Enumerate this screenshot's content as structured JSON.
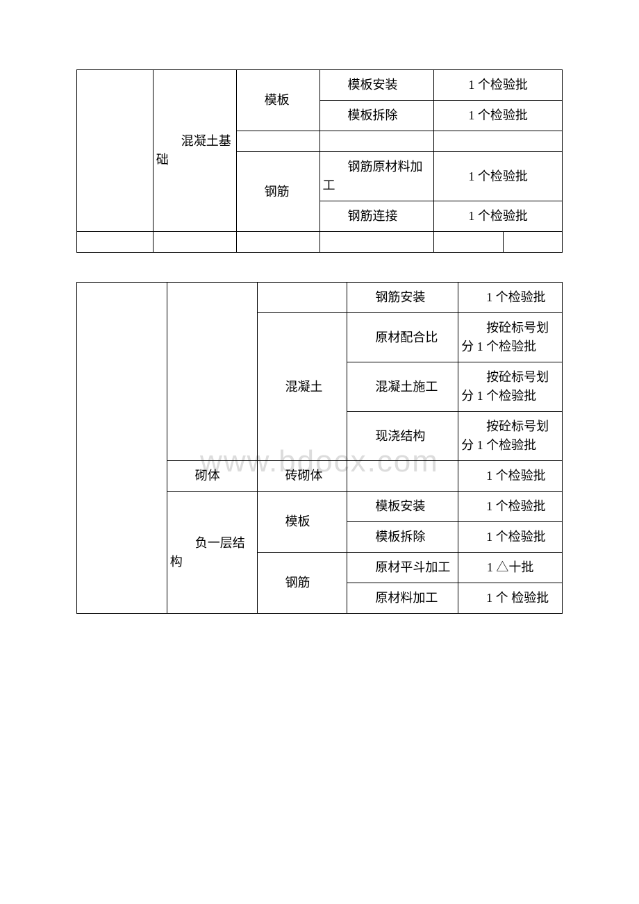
{
  "watermark": "www.bdocx.com",
  "table1": {
    "col1": "混凝土基础",
    "col2a": "模板",
    "col2b": "钢筋",
    "r1c4": "模板安装",
    "r1c5": "1 个检验批",
    "r2c4": "模板拆除",
    "r2c5": "1 个检验批",
    "r4c4": "钢筋原材料加工",
    "r4c5": "1 个检验批",
    "r5c4": "钢筋连接",
    "r5c5": "1 个检验批"
  },
  "table2": {
    "r1c4": "钢筋安装",
    "r1c5": "1 个检验批",
    "col2_concrete": "混凝土",
    "r2c4": "原材配合比",
    "r2c5": "按砼标号划分 1 个检验批",
    "r3c4": "混凝土施工",
    "r3c5": "按砼标号划分 1 个检验批",
    "r4c4": "现浇结构",
    "r4c5": "按砼标号划分 1 个检验批",
    "col2_masonry": "砌体",
    "col3_brick": "砖砌体",
    "r5c5": "1 个检验批",
    "col2_negfloor": "负一层结构",
    "col3_formwork": "模板",
    "r6c4": "模板安装",
    "r6c5": "1 个检验批",
    "r7c4": "模板拆除",
    "r7c5": "1 个检验批",
    "col3_rebar": "钢筋",
    "r8c4": "原材平斗加工",
    "r8c5": "1 △十批",
    "r9c4": "原材料加工",
    "r9c5": "1 个 检验批"
  }
}
